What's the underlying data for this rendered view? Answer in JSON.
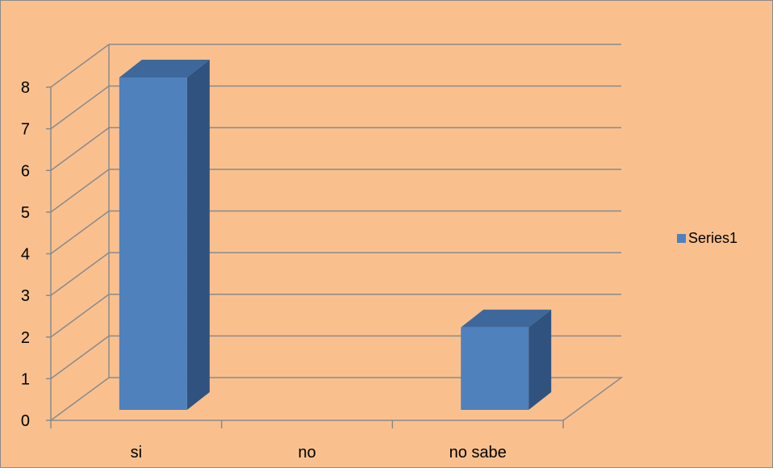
{
  "chart_data": {
    "type": "bar",
    "categories": [
      "si",
      "no",
      "no sabe"
    ],
    "series": [
      {
        "name": "Series1",
        "values": [
          8,
          0,
          2
        ]
      }
    ],
    "ylim": [
      0,
      8
    ],
    "yticks": [
      0,
      1,
      2,
      3,
      4,
      5,
      6,
      7,
      8
    ],
    "grid": true,
    "legend_position": "right",
    "three_d": true
  },
  "colors": {
    "background": "#f9c08e",
    "frame": "#8a8a8a",
    "grid": "#8a8a8a",
    "bar_front": "#4f81bd",
    "bar_top": "#3e689b",
    "bar_side": "#30527e",
    "text": "#000000"
  }
}
